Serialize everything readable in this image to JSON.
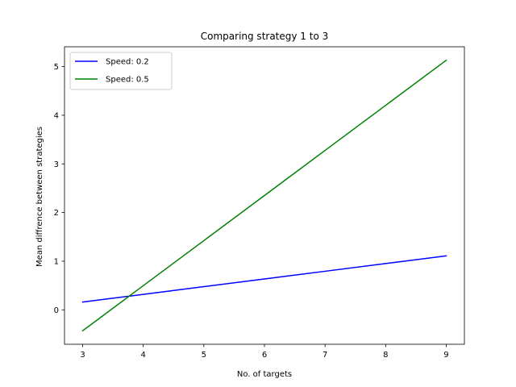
{
  "chart_data": {
    "type": "line",
    "title": "Comparing strategy 1 to 3",
    "xlabel": "No. of targets",
    "ylabel": "Mean diffrence between strategies",
    "x": [
      3,
      4,
      5,
      6,
      7,
      8,
      9
    ],
    "series": [
      {
        "name": "Speed: 0.2",
        "color": "#0000ff",
        "values": [
          0.16,
          0.318,
          0.477,
          0.635,
          0.793,
          0.952,
          1.11
        ]
      },
      {
        "name": "Speed: 0.5",
        "color": "#008000",
        "values": [
          -0.43,
          0.497,
          1.423,
          2.35,
          3.277,
          4.203,
          5.13
        ]
      }
    ],
    "xlim": [
      2.7,
      9.3
    ],
    "ylim": [
      -0.708,
      5.408
    ],
    "xticks": [
      3,
      4,
      5,
      6,
      7,
      8,
      9
    ],
    "yticks": [
      0,
      1,
      2,
      3,
      4,
      5
    ],
    "grid": false,
    "legend": "upper left"
  }
}
